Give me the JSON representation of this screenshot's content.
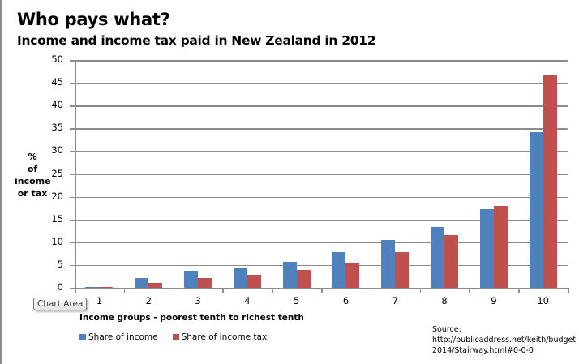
{
  "chart_data": {
    "type": "bar",
    "title": "Who pays what?",
    "subtitle": "Income and income tax paid in New Zealand in 2012",
    "xlabel": "Income groups - poorest tenth to richest tenth",
    "ylabel": [
      "%",
      "of",
      "income",
      "or tax"
    ],
    "categories": [
      "1",
      "2",
      "3",
      "4",
      "5",
      "6",
      "7",
      "8",
      "9",
      "10"
    ],
    "series": [
      {
        "name": "Share of income",
        "color": "#4f81bd",
        "values": [
          0.2,
          2.1,
          3.7,
          4.4,
          5.7,
          7.9,
          10.5,
          13.3,
          17.3,
          34.1
        ]
      },
      {
        "name": "Share of income tax",
        "color": "#c0504d",
        "values": [
          0.2,
          1.1,
          2.1,
          2.8,
          3.9,
          5.6,
          7.9,
          11.5,
          17.9,
          46.6
        ]
      }
    ],
    "yticks": [
      "50",
      "45",
      "40",
      "35",
      "30",
      "25",
      "20",
      "15",
      "10",
      "5",
      "0"
    ],
    "ylim": [
      0,
      50
    ],
    "grid": true,
    "legend_position": "bottom-left"
  },
  "source": {
    "label": "Source:",
    "line1": "http://publicaddress.net/keith/budget",
    "line2": "2014/Stairway.html#0-0-0"
  },
  "tooltip": {
    "text": "Chart Area"
  }
}
